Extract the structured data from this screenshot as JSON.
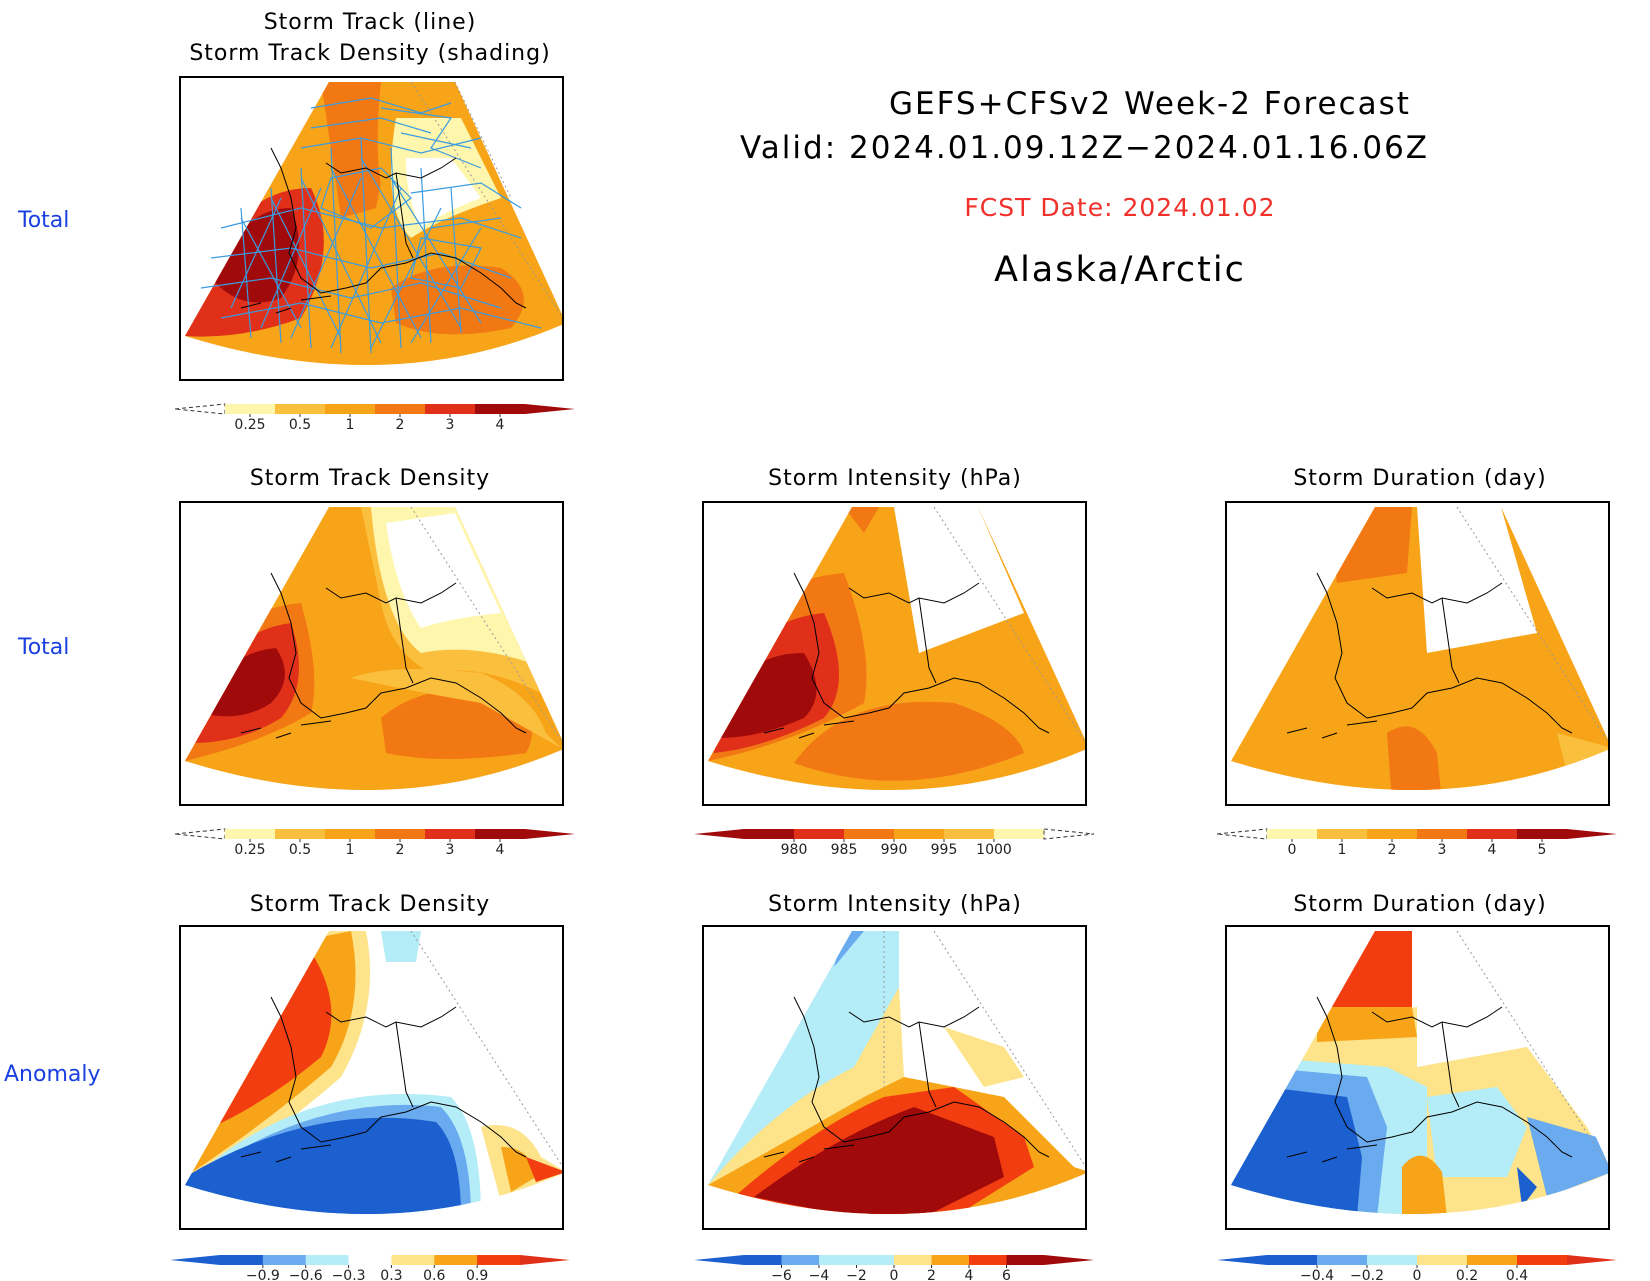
{
  "header": {
    "title": "GEFS+CFSv2 Week-2 Forecast",
    "valid": "Valid: 2024.01.09.12Z−2024.01.16.06Z",
    "fcst": "FCST Date: 2024.01.02",
    "region": "Alaska/Arctic"
  },
  "rows": {
    "r1": "Total",
    "r2": "Total",
    "r3": "Anomaly"
  },
  "titles": {
    "p1a": "Storm Track (line)",
    "p1b": "Storm Track Density (shading)",
    "p2": "Storm Track Density",
    "p3": "Storm Intensity (hPa)",
    "p4": "Storm Duration (day)",
    "p5": "Storm Track Density",
    "p6": "Storm Intensity (hPa)",
    "p7": "Storm Duration (day)"
  },
  "colors": {
    "white": "#ffffff",
    "cream": "#fff6ae",
    "ltorange": "#fbbf3e",
    "orange": "#f7a418",
    "dkorange": "#f27814",
    "red": "#e0301a",
    "dkred": "#a10a0a",
    "ltblue": "#b4ecf7",
    "blue": "#6aabef",
    "medblue": "#3f88e6",
    "dkblue": "#1c5fcf",
    "track": "#3a9be0",
    "lightyellow": "#fde38a"
  },
  "colorbars": {
    "density": {
      "labels": [
        "0.25",
        "0.5",
        "1",
        "2",
        "3",
        "4"
      ],
      "colors": [
        "#fff6ae",
        "#fbbf3e",
        "#f7a418",
        "#f27814",
        "#e0301a",
        "#a10a0a"
      ],
      "under": "dashed",
      "over": "#a10a0a"
    },
    "intensity": {
      "labels": [
        "980",
        "985",
        "990",
        "995",
        "1000"
      ],
      "colors": [
        "#a10a0a",
        "#e0301a",
        "#f27814",
        "#f7a418",
        "#fbbf3e",
        "#fff6ae"
      ],
      "under": "#a10a0a",
      "over": "dashed"
    },
    "duration": {
      "labels": [
        "0",
        "1",
        "2",
        "3",
        "4",
        "5"
      ],
      "colors": [
        "#fff6ae",
        "#fbbf3e",
        "#f7a418",
        "#f27814",
        "#e0301a",
        "#a10a0a"
      ],
      "under": "dashed",
      "over": "#a10a0a"
    },
    "density_anom": {
      "labels": [
        "−0.9",
        "−0.6",
        "−0.3",
        "0.3",
        "0.6",
        "0.9"
      ],
      "colors": [
        "#1c5fcf",
        "#6aabef",
        "#b4ecf7",
        "#ffffff",
        "#fde38a",
        "#f7a418",
        "#f23d10"
      ],
      "under": "#1c5fcf",
      "over": "#e0301a"
    },
    "intensity_anom": {
      "labels": [
        "−6",
        "−4",
        "−2",
        "0",
        "2",
        "4",
        "6"
      ],
      "colors": [
        "#1c5fcf",
        "#6aabef",
        "#b4ecf7",
        "#b4ecf7",
        "#fde38a",
        "#f7a418",
        "#f23d10",
        "#a10a0a"
      ],
      "under": "#1c5fcf",
      "over": "#a10a0a"
    },
    "duration_anom": {
      "labels": [
        "−0.4",
        "−0.2",
        "0",
        "0.2",
        "0.4"
      ],
      "colors": [
        "#1c5fcf",
        "#6aabef",
        "#b4ecf7",
        "#fde38a",
        "#f7a418",
        "#f23d10"
      ],
      "under": "#1c5fcf",
      "over": "#e0301a"
    }
  }
}
